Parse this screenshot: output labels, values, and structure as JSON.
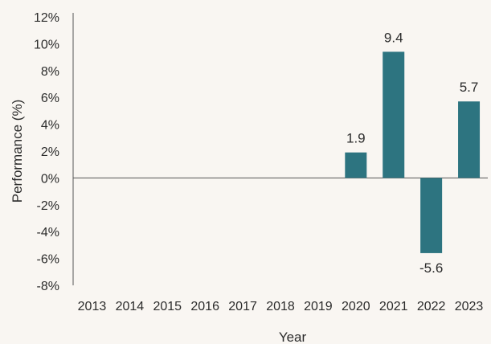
{
  "chart_data": {
    "type": "bar",
    "title": "",
    "xlabel": "Year",
    "ylabel": "Performance (%)",
    "categories": [
      "2013",
      "2014",
      "2015",
      "2016",
      "2017",
      "2018",
      "2019",
      "2020",
      "2021",
      "2022",
      "2023"
    ],
    "values": [
      null,
      null,
      null,
      null,
      null,
      null,
      null,
      1.9,
      9.4,
      -5.6,
      5.7
    ],
    "data_labels": [
      "",
      "",
      "",
      "",
      "",
      "",
      "",
      "1.9",
      "9.4",
      "-5.6",
      "5.7"
    ],
    "ylim": [
      -8,
      12
    ],
    "yticks": [
      12,
      10,
      8,
      6,
      4,
      2,
      0,
      -2,
      -4,
      -6,
      -8
    ],
    "ytick_labels": [
      "12%",
      "10%",
      "8%",
      "6%",
      "4%",
      "2%",
      "0%",
      "-2%",
      "-4%",
      "-6%",
      "-8%"
    ],
    "grid": false,
    "legend": "none",
    "colors": {
      "bar": "#2d7480",
      "axis": "#555555",
      "background": "#f9f6f2"
    }
  }
}
